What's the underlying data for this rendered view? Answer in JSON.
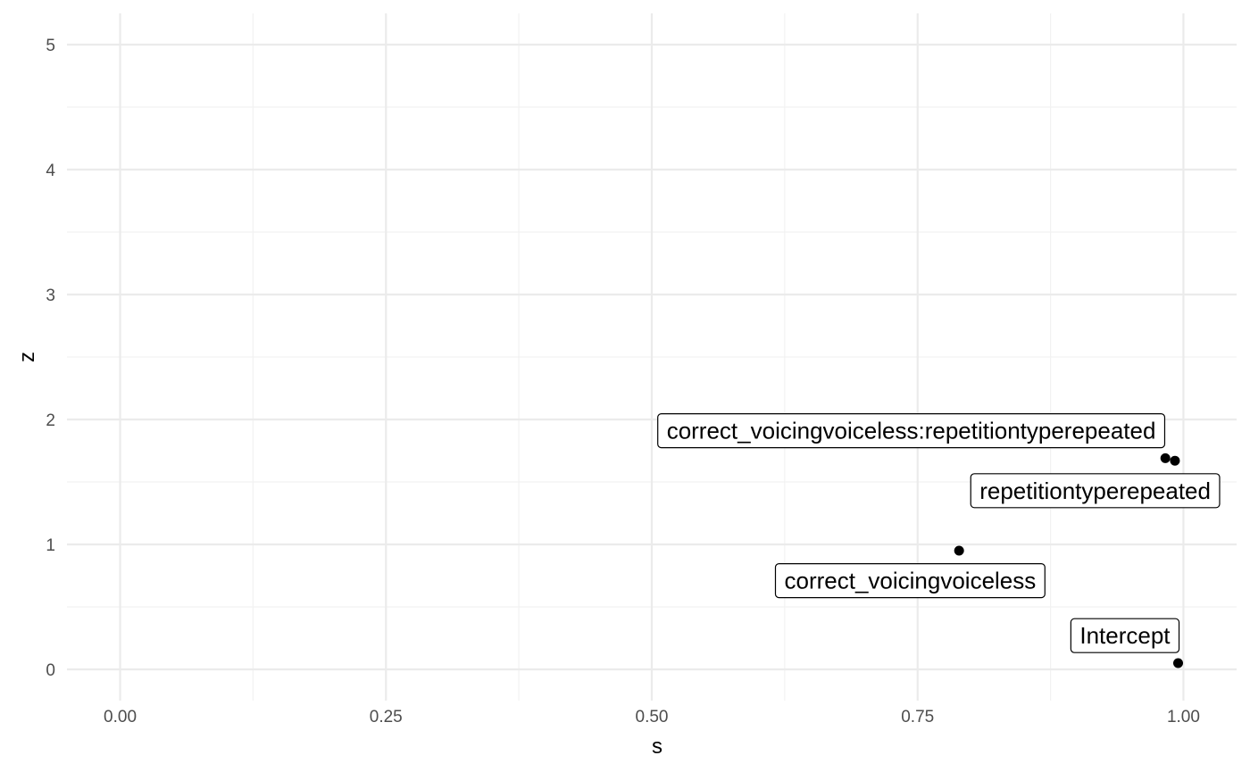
{
  "chart_data": {
    "type": "scatter",
    "xlabel": "s",
    "ylabel": "z",
    "xlim": [
      -0.05,
      1.05
    ],
    "ylim": [
      -0.25,
      5.25
    ],
    "x_ticks": [
      0.0,
      0.25,
      0.5,
      0.75,
      1.0
    ],
    "x_tick_labels": [
      "0.00",
      "0.25",
      "0.50",
      "0.75",
      "1.00"
    ],
    "y_ticks": [
      0,
      1,
      2,
      3,
      4,
      5
    ],
    "y_tick_labels": [
      "0",
      "1",
      "2",
      "3",
      "4",
      "5"
    ],
    "grid": true,
    "points": [
      {
        "label": "correct_voicingvoiceless:repetitiontyperepeated",
        "x": 0.983,
        "y": 1.69,
        "label_x": 0.744,
        "label_y": 1.91
      },
      {
        "label": "repetitiontyperepeated",
        "x": 0.992,
        "y": 1.67,
        "label_x": 0.917,
        "label_y": 1.43
      },
      {
        "label": "correct_voicingvoiceless",
        "x": 0.789,
        "y": 0.95,
        "label_x": 0.743,
        "label_y": 0.71
      },
      {
        "label": "Intercept",
        "x": 0.995,
        "y": 0.05,
        "label_x": 0.945,
        "label_y": 0.27
      }
    ]
  }
}
